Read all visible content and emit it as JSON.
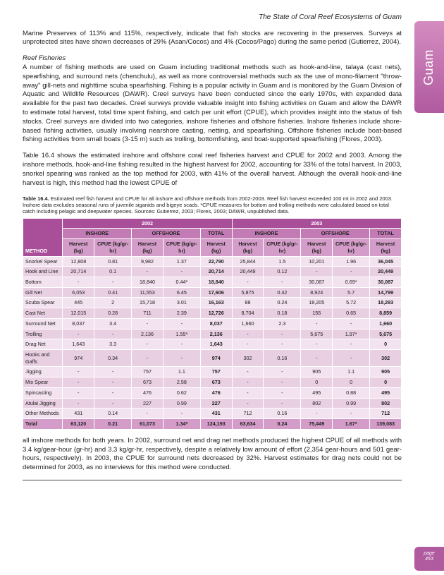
{
  "header": "The State of Coral Reef Ecosystems of Guam",
  "sidebar": "Guam",
  "page_label": "page",
  "page_number": "453",
  "para1": "Marine Preserves of 113% and 115%, respectively, indicate that fish stocks are recovering in the preserves. Surveys at unprotected sites have shown decreases of 29% (Asan/Cocos) and 4% (Cocos/Pago) during the same period (Gutierrez, 2004).",
  "subhead1": "Reef Fisheries",
  "para2": "A number of fishing methods are used on Guam including traditional methods such as hook-and-line, talaya (cast nets), spearfishing, and surround nets (chenchulu), as well as more controversial methods such as the use of mono-filament \"throw-away\" gill-nets and nighttime scuba spearfishing.  Fishing is a popular activity in Guam and is monitored by the Guam Division of Aquatic and Wildlife Resources (DAWR).  Creel surveys have been conducted since the early 1970s, with expanded data available for the past two decades.  Creel surveys provide valuable insight into fishing activities on Guam and allow the DAWR to estimate total harvest, total time spent fishing, and catch per unit effort (CPUE), which provides insight into the status of fish stocks. Creel surveys are divided into two categories, inshore fisheries and offshore fisheries.  Inshore fisheries include shore-based fishing activities, usually involving nearshore casting, netting, and spearfishing.  Offshore fisheries include boat-based fishing activities from small boats (3-15 m) such as trolling, bottomfishing, and boat-supported spearfishing (Flores, 2003).",
  "para3": "Table 16.4 shows the estimated inshore and offshore coral reef fisheries harvest and CPUE for 2002 and 2003.  Among the inshore methods, hook-and-line fishing resulted in the highest harvest for 2002, accounting for 33% of the total harvest.  In 2003, snorkel spearing was ranked as the top method for 2003, with 41% of the overall harvest.  Although the overall hook-and-line harvest is high, this method had the lowest CPUE of",
  "caption_strong": "Table 16.4.",
  "caption_rest": "  Estimated reef fish harvest and CPUE for all inshore and offshore methods from 2002-2003.  Reef fish harvest exceeded 100 mt in 2002 and 2003.  Inshore data excludes seasonal runs of juvenile siganids and bigeye scads.  *CPUE measures for bottom and trolling methods were calculated based on total catch including pelagic and deepwater species.  Sources: Gutierrez, 2003; Flores, 2003; DAWR, unpublished data.",
  "table": {
    "year_a": "2002",
    "year_b": "2003",
    "grp_inshore": "INSHORE",
    "grp_offshore": "OFFSHORE",
    "grp_total": "TOTAL",
    "col_method": "METHOD",
    "col_harvest": "Harvest (kg)",
    "col_cpue_gr": "CPUE (kg/gr-hr)",
    "rows": [
      [
        "Snorkel Spear",
        "12,808",
        "0.81",
        "9,982",
        "1.37",
        "22,790",
        "25,844",
        "1.5",
        "10,201",
        "1.96",
        "36,045"
      ],
      [
        "Hook and Line",
        "20,714",
        "0.1",
        "-",
        "-",
        "20,714",
        "20,449",
        "0.12",
        "-",
        "-",
        "20,449"
      ],
      [
        "Bottom",
        "-",
        "-",
        "18,840",
        "0.44*",
        "18,840",
        "-",
        "-",
        "30,087",
        "0.69*",
        "30,087"
      ],
      [
        "Gill Net",
        "6,053",
        "0.41",
        "11,553",
        "6.45",
        "17,606",
        "5,875",
        "0.42",
        "8,924",
        "5.7",
        "14,799"
      ],
      [
        "Scuba Spear",
        "445",
        "2",
        "15,718",
        "3.01",
        "16,163",
        "88",
        "0.24",
        "18,205",
        "5.72",
        "18,293"
      ],
      [
        "Cast Net",
        "12,015",
        "0.28",
        "711",
        "2.39",
        "12,726",
        "8,704",
        "0.18",
        "155",
        "0.65",
        "8,859"
      ],
      [
        "Surround Net",
        "8,037",
        "3.4",
        "-",
        "-",
        "8,037",
        "1,660",
        "2.3",
        "-",
        "-",
        "1,660"
      ],
      [
        "Trolling",
        "-",
        "-",
        "2,136",
        "1.55*",
        "2,136",
        "-",
        "-",
        "5,675",
        "1.97*",
        "5,675"
      ],
      [
        "Drag Net",
        "1,643",
        "3.3",
        "-",
        "-",
        "1,643",
        "-",
        "-",
        "-",
        "-",
        "0"
      ],
      [
        "Hooks and Gaffs",
        "974",
        "0.34",
        "-",
        "-",
        "974",
        "302",
        "0.16",
        "-",
        "-",
        "302"
      ],
      [
        "Jigging",
        "-",
        "-",
        "757",
        "1.1",
        "757",
        "-",
        "-",
        "905",
        "1.1",
        "905"
      ],
      [
        "Mix Spear",
        "-",
        "-",
        "673",
        "2.58",
        "673",
        "-",
        "-",
        "0",
        "0",
        "0"
      ],
      [
        "Spincasting",
        "-",
        "-",
        "476",
        "0.62",
        "476",
        "-",
        "-",
        "495",
        "0.88",
        "495"
      ],
      [
        "Atulai Jigging",
        "-",
        "-",
        "227",
        "0.99",
        "227",
        "-",
        "-",
        "802",
        "0.99",
        "802"
      ],
      [
        "Other Methods",
        "431",
        "0.14",
        "-",
        "-",
        "431",
        "712",
        "0.16",
        "-",
        "-",
        "712"
      ]
    ],
    "total": [
      "Total",
      "63,120",
      "0.21",
      "61,073",
      "1.34*",
      "124,193",
      "63,634",
      "0.24",
      "75,449",
      "1.67*",
      "139,083"
    ]
  },
  "para4": "all inshore methods for both years.  In 2002, surround net and drag net methods produced the highest CPUE of all methods with 3.4 kg/gear-hour (gr-hr) and 3.3 kg/gr-hr, respectively, despite a relatively low amount of effort (2,354 gear-hours and 501 gear-hours, respectively).  In 2003, the CPUE for surround nets decreased by 32%.  Harvest estimates for drag nets could not be determined for 2003, as no interviews for this method were conducted."
}
